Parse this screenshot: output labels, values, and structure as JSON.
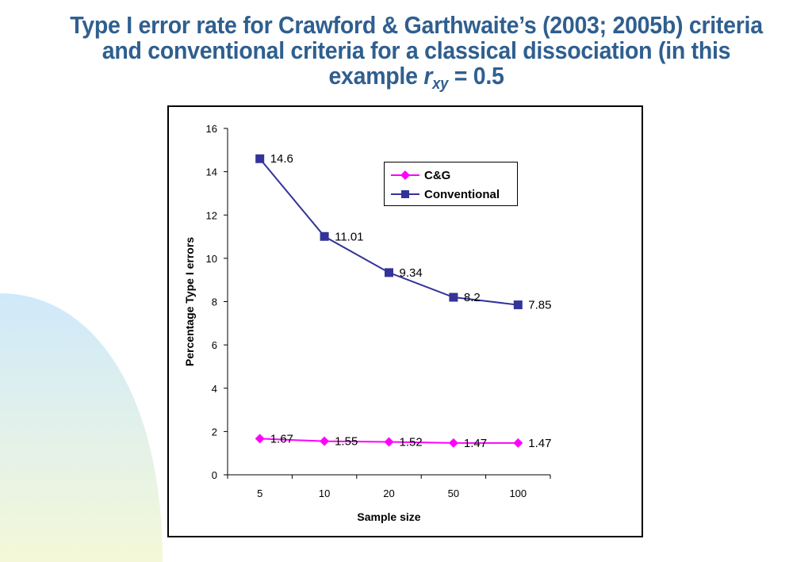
{
  "title": {
    "line1": "Type I error rate for Crawford & Garthwaite’s (2003; 2005b) criteria",
    "line2": "and conventional criteria for a classical dissociation (in this",
    "line3_prefix": "example ",
    "line3_var": "r",
    "line3_sub": "xy",
    "line3_suffix": " = 0.5"
  },
  "colors": {
    "title": "#2f5f8f",
    "cg": "#ff00ff",
    "conventional": "#333399"
  },
  "chart_data": {
    "type": "line",
    "categories": [
      "5",
      "10",
      "20",
      "50",
      "100"
    ],
    "xlabel": "Sample size",
    "ylabel": "Percentage Type I errors",
    "ylim": [
      0,
      16
    ],
    "yticks": [
      0,
      2,
      4,
      6,
      8,
      10,
      12,
      14,
      16
    ],
    "grid": false,
    "legend_position": "top-right",
    "series": [
      {
        "name": "C&G",
        "values": [
          1.67,
          1.55,
          1.52,
          1.47,
          1.47
        ],
        "labels": [
          "1.67",
          "1.55",
          "1.52",
          "1.47",
          "1.47"
        ],
        "color": "#ff00ff",
        "marker": "diamond"
      },
      {
        "name": "Conventional",
        "values": [
          14.6,
          11.01,
          9.34,
          8.2,
          7.85
        ],
        "labels": [
          "14.6",
          "11.01",
          "9.34",
          "8.2",
          "7.85"
        ],
        "color": "#333399",
        "marker": "square"
      }
    ]
  }
}
